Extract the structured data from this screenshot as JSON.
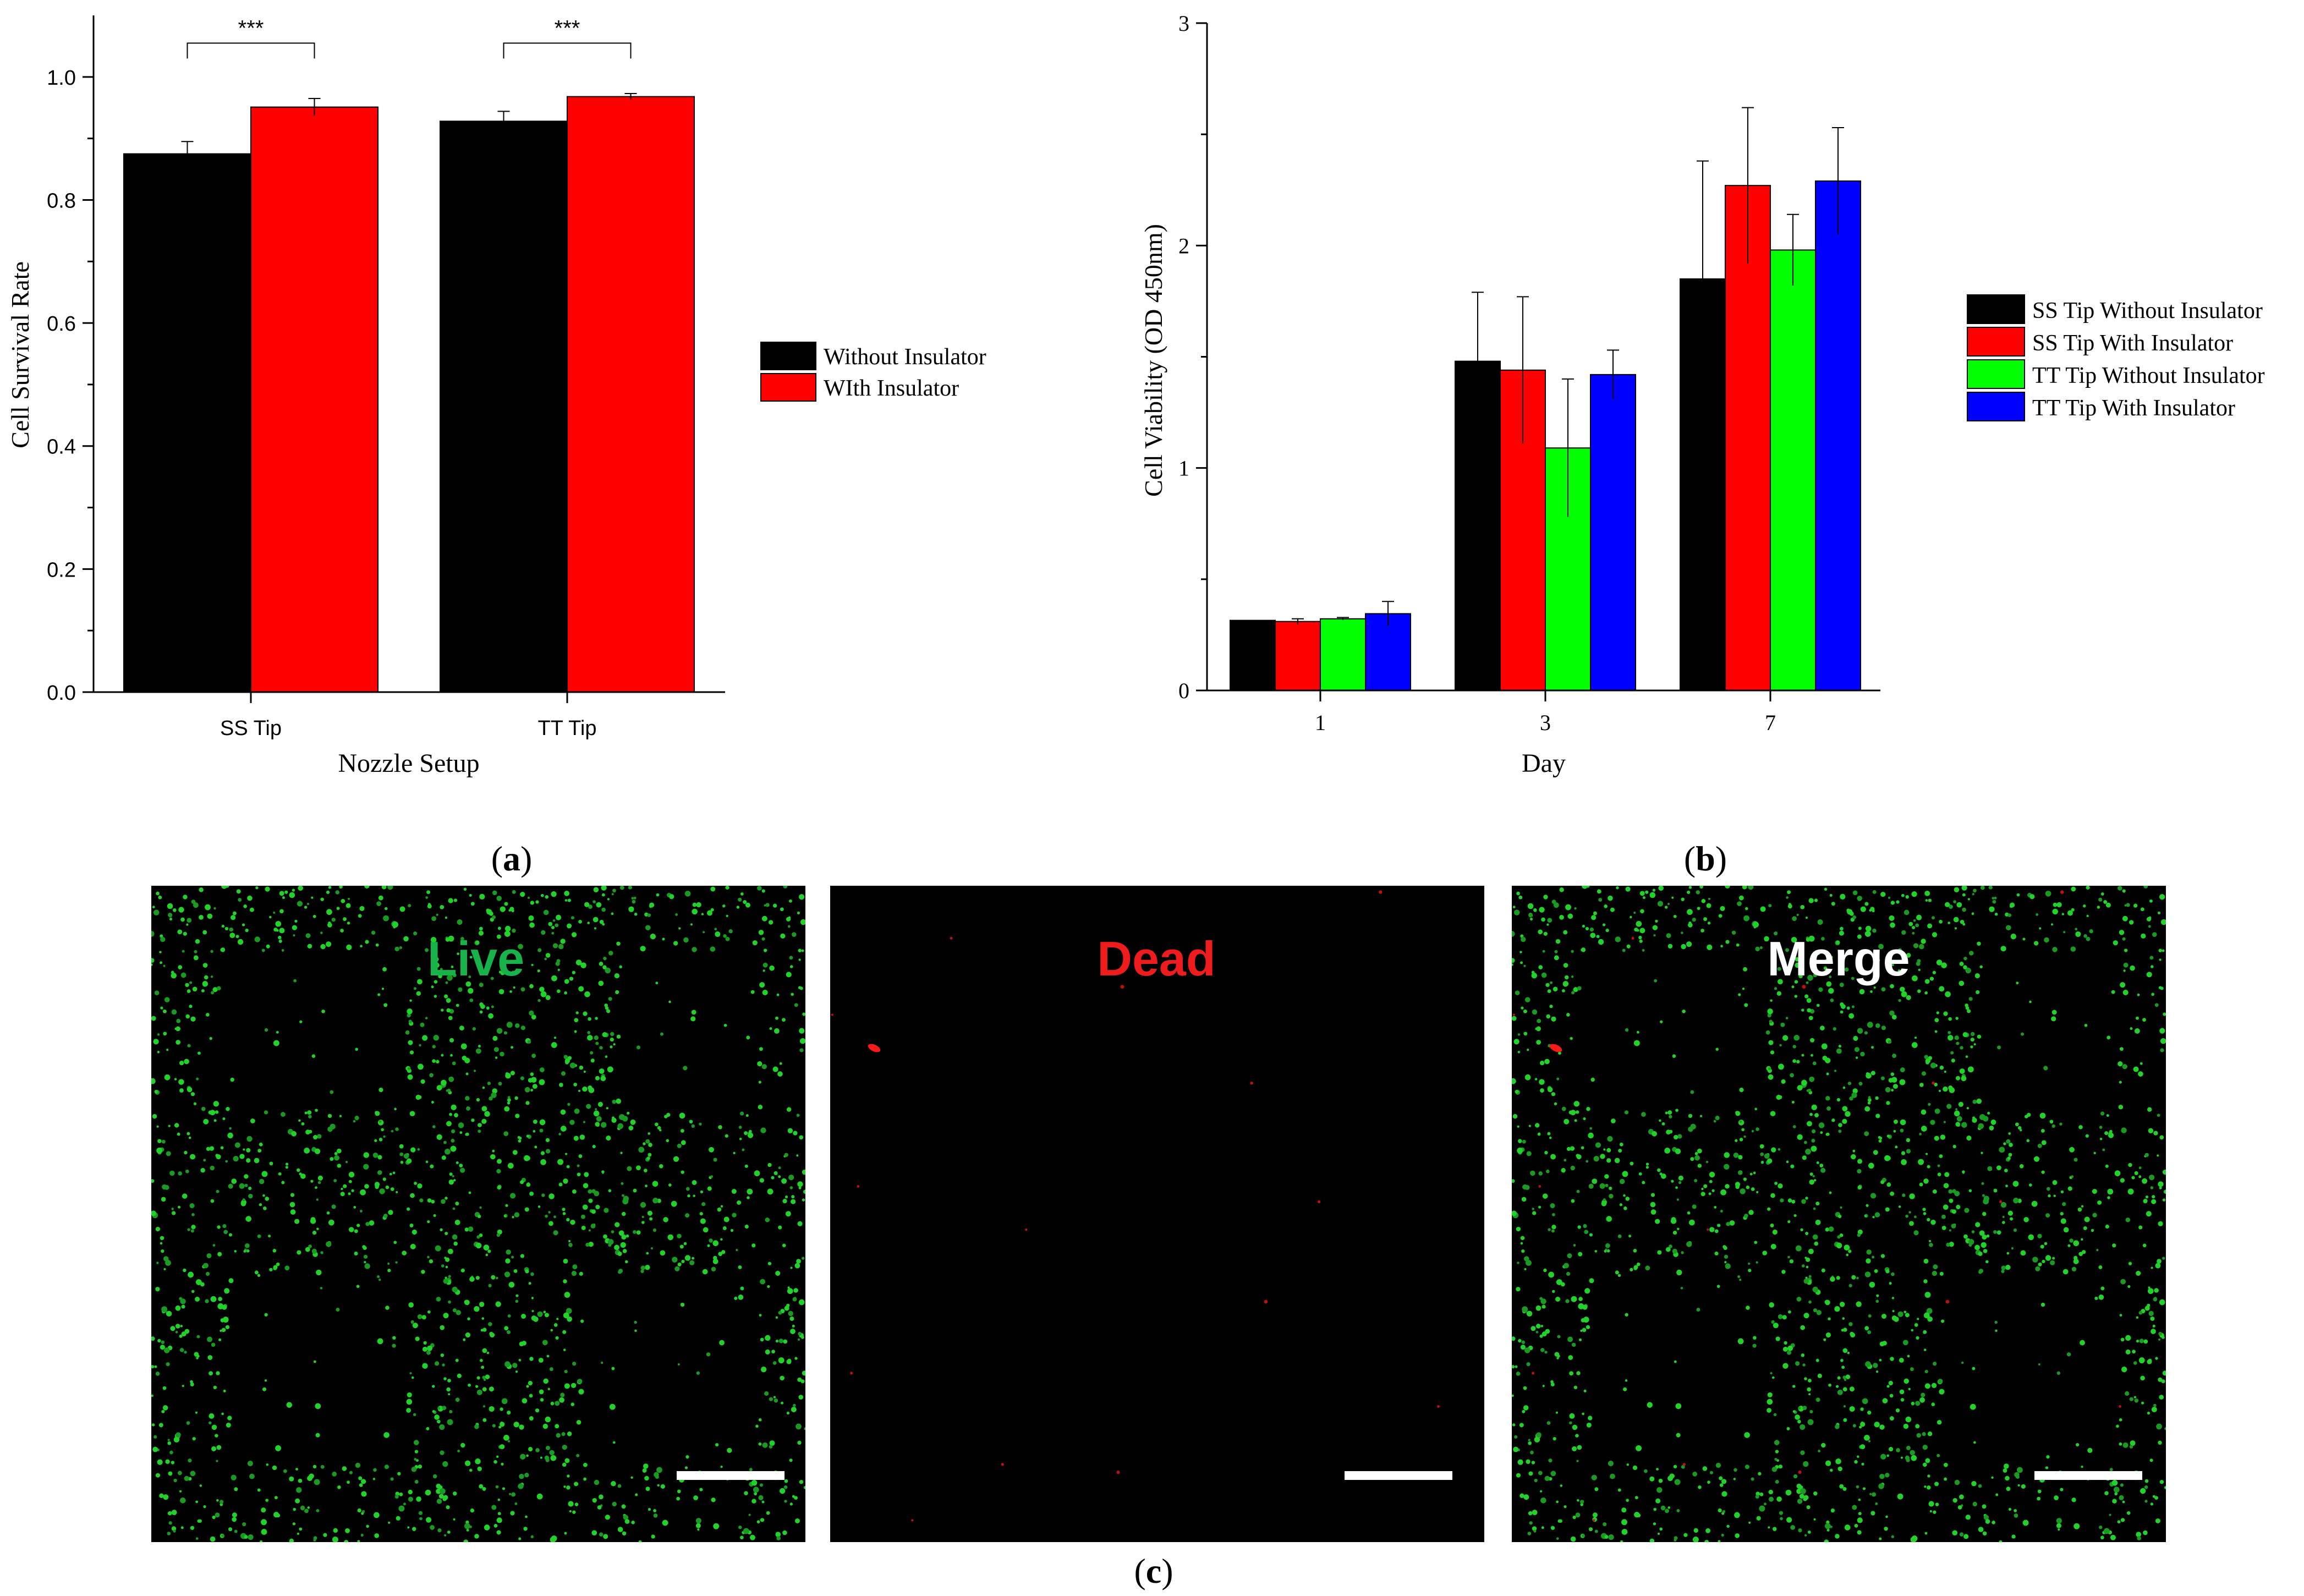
{
  "chart_data": [
    {
      "id": "a",
      "type": "bar",
      "title": "",
      "xlabel": "Nozzle Setup",
      "ylabel": "Cell Survival Rate",
      "categories": [
        "SS Tip",
        "TT Tip"
      ],
      "ylim": [
        0,
        1.1
      ],
      "yticks": [
        0.0,
        0.2,
        0.4,
        0.6,
        0.8,
        1.0
      ],
      "ytick_labels": [
        "0.0",
        "0.2",
        "0.4",
        "0.6",
        "0.8",
        "1.0"
      ],
      "series": [
        {
          "name": "Without Insulator",
          "color": "#000000",
          "values": [
            0.875,
            0.928
          ],
          "errors": [
            0.02,
            0.016
          ]
        },
        {
          "name": "WIth Insulator",
          "color": "#ff0000",
          "values": [
            0.951,
            0.968
          ],
          "errors": [
            0.014,
            0.005
          ]
        }
      ],
      "significance": [
        {
          "category": "SS Tip",
          "label": "***"
        },
        {
          "category": "TT Tip",
          "label": "***"
        }
      ],
      "legend": "right",
      "panel_label": {
        "open": "(",
        "letter": "a",
        "close": ")"
      }
    },
    {
      "id": "b",
      "type": "bar",
      "title": "",
      "xlabel": "Day",
      "ylabel": "Cell Viability (OD 450nm)",
      "categories": [
        "1",
        "3",
        "7"
      ],
      "ylim": [
        0,
        3
      ],
      "yticks": [
        0,
        1,
        2,
        3
      ],
      "ytick_labels": [
        "0",
        "1",
        "2",
        "3"
      ],
      "series": [
        {
          "name": "SS Tip Without Insulator",
          "color": "#000000",
          "values": [
            0.315,
            1.48,
            1.85
          ],
          "errors": [
            0.0,
            0.31,
            0.53
          ]
        },
        {
          "name": "SS Tip With Insulator",
          "color": "#ff0000",
          "values": [
            0.31,
            1.44,
            2.27
          ],
          "errors": [
            0.012,
            0.33,
            0.35
          ]
        },
        {
          "name": "TT Tip Without Insulator",
          "color": "#00ff00",
          "values": [
            0.322,
            1.09,
            1.98
          ],
          "errors": [
            0.006,
            0.31,
            0.16
          ]
        },
        {
          "name": "TT Tip With Insulator",
          "color": "#0000ff",
          "values": [
            0.345,
            1.42,
            2.29
          ],
          "errors": [
            0.055,
            0.11,
            0.24
          ]
        }
      ],
      "legend": "right",
      "panel_label": {
        "open": "(",
        "letter": "b",
        "close": ")"
      }
    }
  ],
  "images": [
    {
      "label": "Live",
      "label_color": "#17b24a",
      "channel": "live"
    },
    {
      "label": "Dead",
      "label_color": "#ee1c1c",
      "channel": "dead"
    },
    {
      "label": "Merge",
      "label_color": "#ffffff",
      "channel": "merge"
    }
  ],
  "panel_c_label": {
    "open": "(",
    "letter": "c",
    "close": ")"
  }
}
